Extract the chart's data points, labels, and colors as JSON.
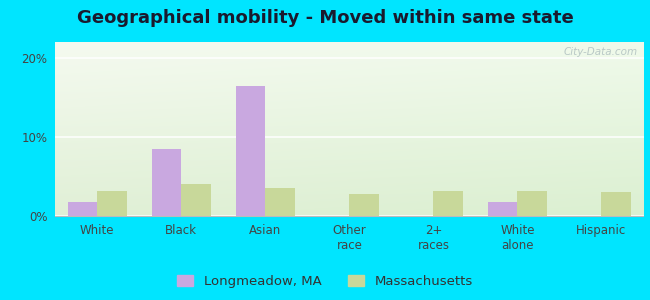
{
  "title": "Geographical mobility - Moved within same state",
  "categories": [
    "White",
    "Black",
    "Asian",
    "Other\nrace",
    "2+\nraces",
    "White\nalone",
    "Hispanic"
  ],
  "longmeadow_values": [
    1.8,
    8.5,
    16.5,
    0,
    0,
    1.8,
    0
  ],
  "massachusetts_values": [
    3.2,
    4.0,
    3.5,
    2.8,
    3.2,
    3.2,
    3.0
  ],
  "bar_color_longmeadow": "#c9a8e0",
  "bar_color_massachusetts": "#c8d89a",
  "background_outer": "#00e5ff",
  "ylim": [
    0,
    22
  ],
  "yticks": [
    0,
    10,
    20
  ],
  "ytick_labels": [
    "0%",
    "10%",
    "20%"
  ],
  "legend_label_longmeadow": "Longmeadow, MA",
  "legend_label_massachusetts": "Massachusetts",
  "bar_width": 0.35,
  "title_fontsize": 13,
  "tick_fontsize": 8.5,
  "legend_fontsize": 9.5
}
